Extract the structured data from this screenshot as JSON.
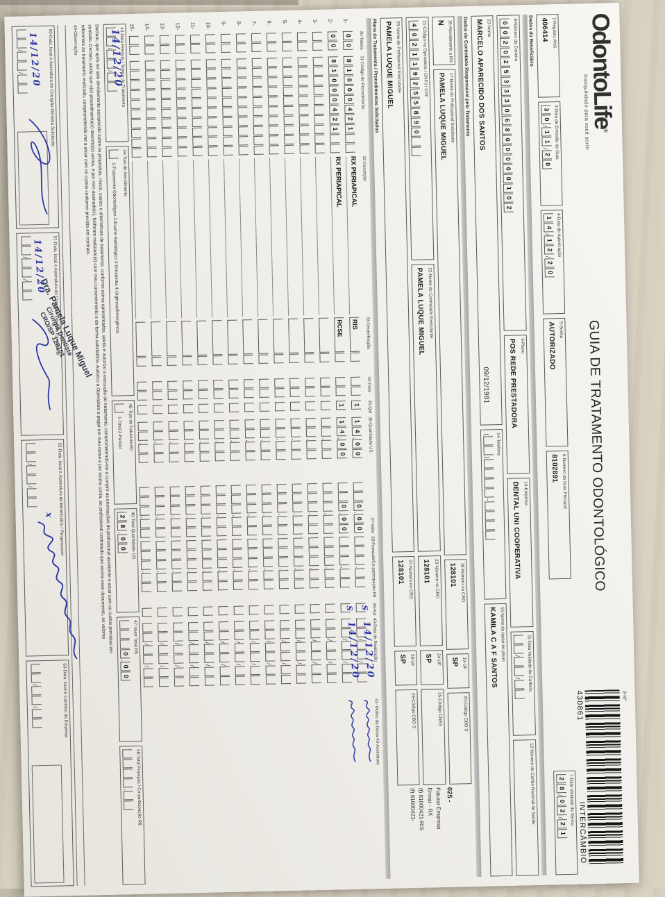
{
  "logo": {
    "name": "OdontoLife",
    "registered": "®",
    "tagline": "tranquilidade para você sorrir"
  },
  "title": "GUIA DE TRATAMENTO ODONTOLÓGICO",
  "barcode": {
    "field_label": "2-Nº",
    "number": "430861",
    "type": "INTERCÂMBIO"
  },
  "header_fields": {
    "registro_ans": {
      "label": "1-Registro ANS",
      "value": "406414"
    },
    "data_emissao": {
      "label": "3-Data de Emissão da Guia",
      "tokens": [
        "3",
        "0",
        "/",
        "1",
        "1",
        "/",
        "2",
        "0"
      ]
    },
    "data_autorizacao": {
      "label": "4-Data de Autorização",
      "tokens": [
        "1",
        "4",
        "/",
        "1",
        "2",
        "/",
        "2",
        "0"
      ]
    },
    "senha": {
      "label": "5-Senha",
      "value": "AUTORIZADO"
    },
    "numero_guia_principal": {
      "label": "6-Número da Guia Principal",
      "value": "8102891"
    },
    "data_validade_senha": {
      "label": "7-Data Validade da Senha",
      "tokens": [
        "2",
        "8",
        "/",
        "0",
        "2",
        "/",
        "2",
        "1"
      ]
    }
  },
  "beneficiario": {
    "section_label": "Dados do Beneficiário",
    "numero_carteira": {
      "label": "8-Número da Carteira",
      "tokens": [
        "0",
        "0",
        "2",
        "0",
        "2",
        "5",
        "3",
        "3",
        "3",
        "0",
        "6",
        "8",
        "0",
        "0",
        "0",
        "0",
        "0",
        "1",
        "0",
        "2"
      ]
    },
    "plano": {
      "label": "9-Plano",
      "value": "POS REDE PRESTADORA"
    },
    "empresa": {
      "label": "10-Empresa",
      "value": "DENTAL UNI COOPERATIVA"
    },
    "validade_carteira": {
      "label": "11-Data Validade da Carteira",
      "tokens": [
        "",
        "",
        "/",
        "",
        "",
        "/",
        "",
        ""
      ]
    },
    "cartao_nacional": {
      "label": "12-Número do Cartão Nacional de Saúde",
      "value": ""
    },
    "nome": {
      "label": "13-Nome",
      "value": "MARCELO APARECIDO DOS SANTOS",
      "nascimento": "09/12/1981"
    },
    "telefone": {
      "label": "14-Telefone",
      "tokens": [
        "(",
        "",
        "",
        ")",
        "",
        "",
        "",
        "",
        "-",
        "",
        "",
        "",
        ""
      ]
    },
    "titular": {
      "label": "15-Nome do titular do plano",
      "value": "KAMILA C A F SANTOS"
    }
  },
  "contratado": {
    "section_label": "Dados do Contratado Responsável pelo Tratamento",
    "atendimento_rn": {
      "label": "16-Atendimento a RN",
      "value": "N"
    },
    "prof_solicitante": {
      "label": "17-Nome do Profissional Solicitante",
      "value": "PAMELA LUQUE MIGUEL"
    },
    "cro_solicitante": {
      "label": "18-Número no CRO",
      "value": "128101"
    },
    "uf_solicitante": {
      "label": "19-UF",
      "value": "SP"
    },
    "cbo_solicitante": {
      "label": "20-Código CBO S",
      "value": ""
    },
    "codigo_operadora": {
      "label": "21-Código na Operadora / CNPJ / CPF",
      "tokens": [
        "4",
        "0",
        "2",
        "1",
        "1",
        "9",
        "2",
        "5",
        "5",
        "8",
        "9",
        "0",
        "",
        ""
      ]
    },
    "contratado_executante": {
      "label": "22-Nome do Contratado Executante",
      "value": "PAMELA LUQUE MIGUEL"
    },
    "cro_executante": {
      "label": "23-Número no CRO",
      "value": "128101"
    },
    "uf_executante": {
      "label": "24-UF",
      "value": "SP"
    },
    "cnes": {
      "label": "25-Código CNES",
      "value": ""
    },
    "prof_executante": {
      "label": "26-Nome do Profissional Executante",
      "value": "PAMELA LUQUE MIGUEL"
    },
    "cro_prof_executante": {
      "label": "27-Número no CRO",
      "value": "128101"
    },
    "uf_prof_executante": {
      "label": "28-UF",
      "value": "SP"
    },
    "cbo_executante": {
      "label": "29-Código CBO S",
      "value": ""
    },
    "annotation": [
      "025 -",
      "Faturar Empresa",
      "Enviar - RX",
      "(f) 81000421-RIS",
      "(f) 81000421-"
    ]
  },
  "plano_tratamento": {
    "section_label": "Plano de Tratamento / Procedimentos Solicitados",
    "columns": [
      "30-Tabela",
      "31-Código do Procedimento",
      "32-Descrição",
      "33-Dente/Região",
      "34-Face",
      "35-Qtd",
      "36-Quantidade US",
      "37-Valor",
      "38-Franquia/Co-participação R$",
      "39-Aut",
      "40-Data de Realização",
      "41- Motivo da Glosa",
      "42-Assinatura"
    ],
    "rows": [
      {
        "num": "1-",
        "tabela": [
          "0",
          "0"
        ],
        "codigo": [
          "8",
          "1",
          "0",
          "0",
          "0",
          "4",
          "2",
          "1",
          "",
          ""
        ],
        "descricao": "RX PERIAPICAL",
        "dente": "RIS",
        "qtd": "1",
        "us": [
          "1",
          "4",
          ",",
          "0",
          "0"
        ],
        "valor": [
          "",
          "",
          "0",
          ",",
          "0",
          "0"
        ],
        "aut": "S",
        "data": "14/12/20",
        "assinado": true
      },
      {
        "num": "2-",
        "tabela": [
          "0",
          "0"
        ],
        "codigo": [
          "8",
          "1",
          "0",
          "0",
          "0",
          "4",
          "2",
          "1",
          "",
          ""
        ],
        "descricao": "RX PERIAPICAL",
        "dente": "RCSE",
        "qtd": "1",
        "us": [
          "1",
          "4",
          ",",
          "0",
          "0"
        ],
        "valor": [
          "",
          "",
          "0",
          ",",
          "0",
          "0"
        ],
        "aut": "S",
        "data": "14/12/20",
        "assinado": true
      },
      {
        "num": "3-"
      },
      {
        "num": "4-"
      },
      {
        "num": "5-"
      },
      {
        "num": "6-"
      },
      {
        "num": "7-"
      },
      {
        "num": "8-"
      },
      {
        "num": "9-"
      },
      {
        "num": "10-"
      },
      {
        "num": "11-"
      },
      {
        "num": "12-"
      },
      {
        "num": "13-"
      },
      {
        "num": "14-"
      },
      {
        "num": "15-"
      }
    ]
  },
  "rodape": {
    "data_prevista": {
      "label": "43-Data Prevista / Tempo do Tratamento",
      "tokens": [
        "",
        "",
        "/",
        "",
        "",
        "/",
        "",
        ""
      ],
      "handwritten": "14/12/20"
    },
    "tipo_atendimento": {
      "label": "44-Tipo de Atendimento",
      "options": "1-Tratamento Odontológico  2-Exame Radiológico  3-Ortodontia  4-Urgência/Emergência",
      "value": ""
    },
    "tipo_faturamento": {
      "label": "45-Tipo de Faturamento",
      "options": "1-Total  2-Parcial",
      "value": ""
    },
    "total_us": {
      "label": "46-Total Quantidade US",
      "tokens": [
        "2",
        "8",
        ",",
        "0",
        "0"
      ]
    },
    "valor_total": {
      "label": "47-Valor Total R$",
      "tokens": [
        "",
        "",
        "",
        "0",
        ",",
        "0",
        "0"
      ]
    },
    "total_franquia": {
      "label": "48-Total Franquia / Co-participação R$",
      "tokens": [
        "",
        "",
        "",
        "",
        ",",
        "",
        ""
      ]
    },
    "declaracao": {
      "l1": "Declaro, que após ter sido devidamente esclarecido sobre os propósitos, riscos, custos e alternativas de tratamento, conforme acima apresentados, aceito e autorizo a execução do tratamento, comprometendo-me a cumprir as orientações do profissional assistente e arcar com os custos previstos em",
      "l2": "contrato. Declaro, ainda que o(s) procedimento(s) descrito(s) acima, e por mim assinado(s), foi/foram realizado(s) com meu consentimento e de forma satisfatória. Autorizo a Operadora a pagar em meu nome e por minha conta, ao profissional contratado que assina esse documento, os valores",
      "l3": "referentes ao tratamento realizado, comprometendo-me a arcar com os custos conforme previsto em contrato."
    },
    "observacao_label": "49-Observação"
  },
  "assinaturas": {
    "s50": {
      "label": "50-Data, local e Assinatura do Cirurgião-Dentista Solicitante",
      "tokens": [
        "",
        "",
        "/",
        "",
        "",
        "/",
        "",
        ""
      ],
      "handwritten": "14/12/20"
    },
    "s51": {
      "label": "51-Data, local e Assinatura do Cirurgião-Dentista Executante",
      "tokens": [
        "",
        "",
        "/",
        "",
        "",
        "/",
        "",
        ""
      ],
      "handwritten": "14/12/20"
    },
    "s52": {
      "label": "52-Data, local e Assinatura do Beneficiário / Responsável",
      "tokens": [
        "",
        "",
        "/",
        "",
        "",
        "/",
        "",
        ""
      ],
      "mark": "x"
    },
    "s53": {
      "label": "53-Data, local e Carimbo da Empresa",
      "tokens": [
        "",
        "",
        "/",
        "",
        "",
        "/",
        "",
        ""
      ]
    },
    "stamp": {
      "line1": "Dra. Pamela Luque Miguel",
      "line2": "Cirurgiã Dentista",
      "line3": "CRO/SP 128101"
    }
  },
  "colors": {
    "ink_blue": "#2c37a5",
    "print_gray": "#2e2e2e",
    "table_surface": "#d6cec0"
  }
}
